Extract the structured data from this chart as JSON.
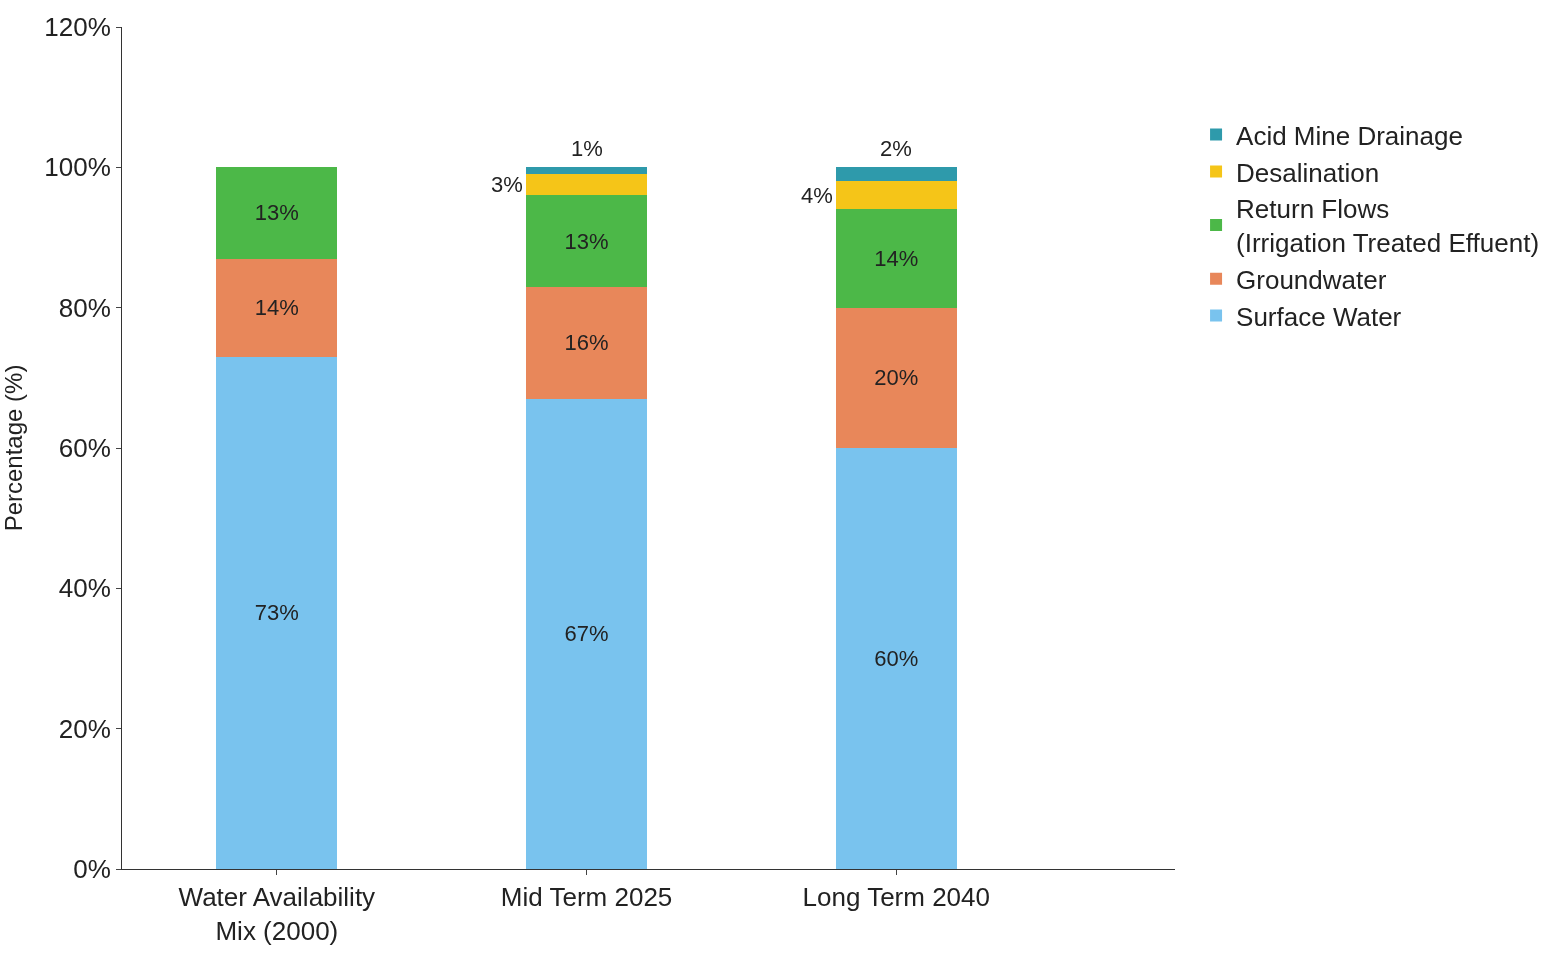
{
  "chart_data": {
    "type": "bar",
    "stacked": true,
    "ylabel": "Percentage (%)",
    "categories": [
      "Water Availability\nMix (2000)",
      "Mid Term 2025",
      "Long Term 2040"
    ],
    "series": [
      {
        "name": "Surface Water",
        "color": "#79c3ee",
        "values": [
          73,
          67,
          60
        ],
        "value_labels": [
          "73%",
          "67%",
          "60%"
        ]
      },
      {
        "name": "Groundwater",
        "color": "#e8875a",
        "values": [
          14,
          16,
          20
        ],
        "value_labels": [
          "14%",
          "16%",
          "20%"
        ]
      },
      {
        "name": "Return Flows\n(Irrigation Treated Effuent)",
        "color": "#4cb848",
        "values": [
          13,
          13,
          14
        ],
        "value_labels": [
          "13%",
          "13%",
          "14%"
        ]
      },
      {
        "name": "Desalination",
        "color": "#f5c518",
        "values": [
          null,
          3,
          4
        ],
        "value_labels": [
          null,
          "3%",
          "4%"
        ]
      },
      {
        "name": "Acid Mine Drainage",
        "color": "#2e9aab",
        "values": [
          null,
          1,
          2
        ],
        "value_labels": [
          null,
          "1%",
          "2%"
        ]
      }
    ],
    "ylim": [
      0,
      120
    ],
    "yticks": [
      {
        "value": 0,
        "label": "0%"
      },
      {
        "value": 20,
        "label": "20%"
      },
      {
        "value": 40,
        "label": "40%"
      },
      {
        "value": 60,
        "label": "60%"
      },
      {
        "value": 80,
        "label": "80%"
      },
      {
        "value": 100,
        "label": "100%"
      },
      {
        "value": 120,
        "label": "120%"
      }
    ],
    "legend": "right"
  }
}
